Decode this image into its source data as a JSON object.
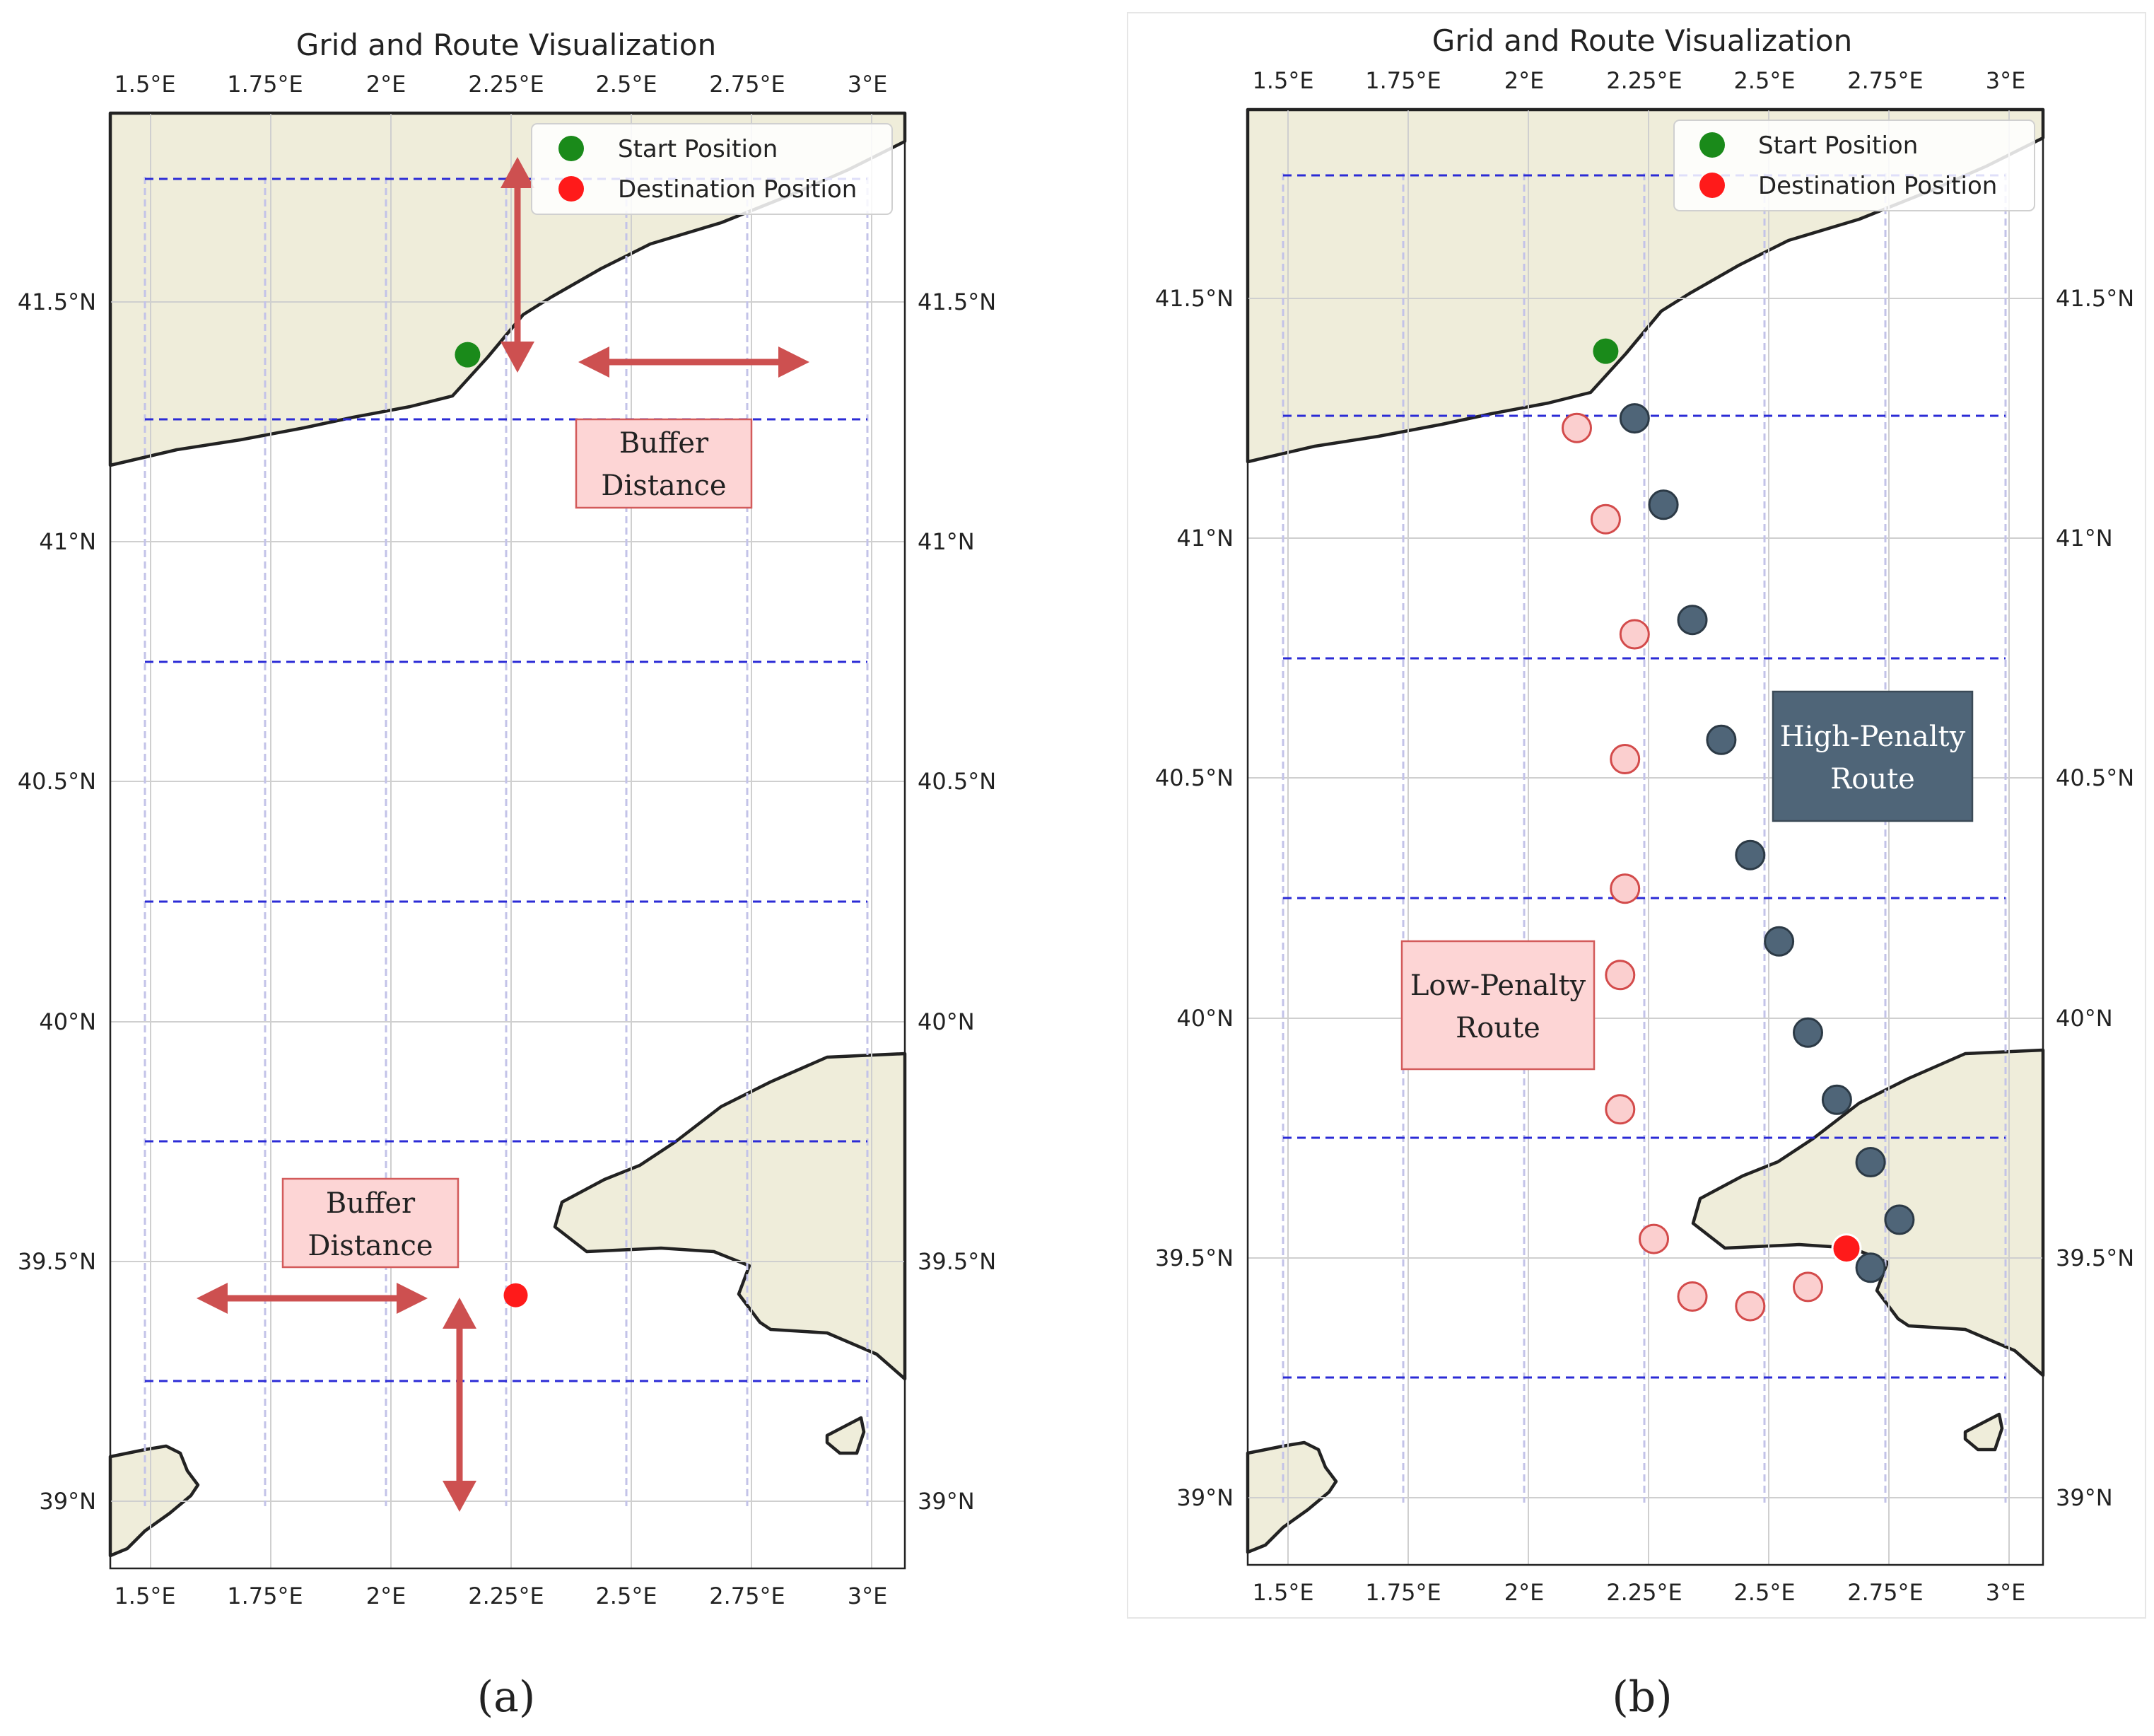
{
  "colors": {
    "land": "#efedda",
    "coast": "#222222",
    "grid_dashed": "#2b2bd6",
    "start_marker": "#1a8a1a",
    "destination_marker": "#ff1a1a",
    "low_penalty": "#fbcfcf",
    "high_penalty": "#4f6578",
    "arrow": "#cd5050",
    "label_pink": "#fdd5d5"
  },
  "axes": {
    "lon_ticks": [
      "1.5°E",
      "1.75°E",
      "2°E",
      "2.25°E",
      "2.5°E",
      "2.75°E",
      "3°E"
    ],
    "lat_ticks": [
      "41.5°N",
      "41°N",
      "40.5°N",
      "40°N",
      "39.5°N",
      "39°N"
    ]
  },
  "panel_a": {
    "title": "Grid and Route Visualization",
    "legend": {
      "start": "Start Position",
      "destination": "Destination Position"
    },
    "start": {
      "lon": 2.17,
      "lat": 41.39
    },
    "destination": {
      "lon": 2.27,
      "lat": 39.43
    },
    "buffer_label_top": [
      "Buffer",
      "Distance"
    ],
    "buffer_label_bottom": [
      "Buffer",
      "Distance"
    ],
    "caption": "(a)"
  },
  "panel_b": {
    "title": "Grid and Route Visualization",
    "legend": {
      "start": "Start Position",
      "destination": "Destination Position"
    },
    "start": {
      "lon": 2.17,
      "lat": 41.39
    },
    "destination": {
      "lon": 2.67,
      "lat": 39.52
    },
    "high_penalty_label": [
      "High-Penalty",
      "Route"
    ],
    "low_penalty_label": [
      "Low-Penalty",
      "Route"
    ],
    "high_penalty_route": [
      {
        "lon": 2.23,
        "lat": 41.25
      },
      {
        "lon": 2.29,
        "lat": 41.07
      },
      {
        "lon": 2.35,
        "lat": 40.83
      },
      {
        "lon": 2.41,
        "lat": 40.58
      },
      {
        "lon": 2.47,
        "lat": 40.34
      },
      {
        "lon": 2.53,
        "lat": 40.16
      },
      {
        "lon": 2.59,
        "lat": 39.97
      },
      {
        "lon": 2.65,
        "lat": 39.83
      },
      {
        "lon": 2.72,
        "lat": 39.7
      },
      {
        "lon": 2.78,
        "lat": 39.58
      },
      {
        "lon": 2.72,
        "lat": 39.48
      }
    ],
    "low_penalty_route": [
      {
        "lon": 2.11,
        "lat": 41.23
      },
      {
        "lon": 2.17,
        "lat": 41.04
      },
      {
        "lon": 2.23,
        "lat": 40.8
      },
      {
        "lon": 2.21,
        "lat": 40.54
      },
      {
        "lon": 2.21,
        "lat": 40.27
      },
      {
        "lon": 2.2,
        "lat": 40.09
      },
      {
        "lon": 2.2,
        "lat": 39.81
      },
      {
        "lon": 2.27,
        "lat": 39.54
      },
      {
        "lon": 2.35,
        "lat": 39.42
      },
      {
        "lon": 2.47,
        "lat": 39.4
      },
      {
        "lon": 2.59,
        "lat": 39.44
      }
    ],
    "caption": "(b)"
  }
}
